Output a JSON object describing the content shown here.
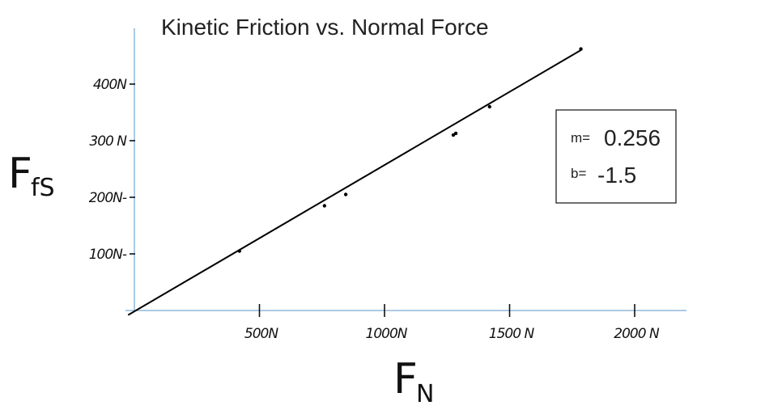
{
  "chart_data": {
    "type": "scatter",
    "title": "Kinetic Friction vs. Normal Force",
    "xlabel": "F_N",
    "ylabel": "F_fs",
    "xlabel_main": "F",
    "xlabel_sub": "N",
    "ylabel_main": "F",
    "ylabel_sub": "fS",
    "xlim": [
      -30,
      2200
    ],
    "ylim": [
      -10,
      450
    ],
    "x_ticks": [
      {
        "value": 500,
        "label": "500N"
      },
      {
        "value": 1000,
        "label": "1000N"
      },
      {
        "value": 1500,
        "label": "1500 N"
      },
      {
        "value": 2000,
        "label": "2000 N"
      }
    ],
    "y_ticks": [
      {
        "value": 100,
        "label": "100N-"
      },
      {
        "value": 200,
        "label": "200N-"
      },
      {
        "value": 300,
        "label": "300 N"
      },
      {
        "value": 400,
        "label": "400N"
      }
    ],
    "series": [
      {
        "x": [
          420,
          760,
          845,
          1275,
          1285,
          1420,
          1785
        ],
        "y": [
          105,
          185,
          205,
          310,
          313,
          360,
          462
        ]
      }
    ],
    "fit_line": {
      "x": [
        -25,
        1785
      ],
      "y": [
        -8,
        460
      ]
    },
    "fit_box": {
      "m_label": "m=",
      "m_value": "0.256",
      "b_label": "b=",
      "b_value": "-1.5"
    },
    "colors": {
      "axis": "#8fb8dc",
      "line": "#000000",
      "points": "#000000"
    }
  }
}
